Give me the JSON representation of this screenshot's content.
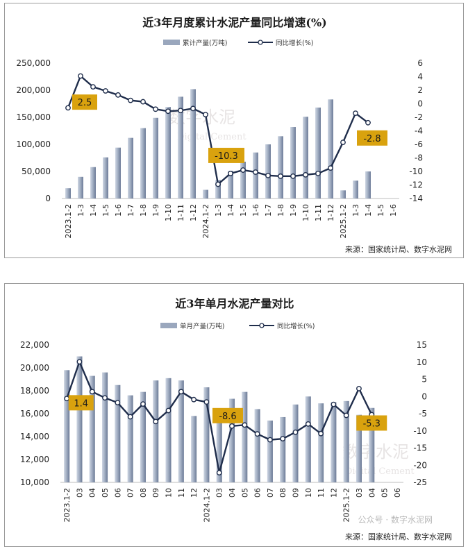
{
  "chart_data": [
    {
      "type": "bar+line",
      "title": "近3年月度累计水泥产量同比增速(%)",
      "legend": {
        "bar": "累计产量(万吨)",
        "line": "同比增长(%)"
      },
      "source": "来源：国家统计局、数字水泥网",
      "watermark": {
        "cn": "数字水泥",
        "en": "Digital Cement"
      },
      "categories": [
        "2023.1-2",
        "1-3",
        "1-4",
        "1-5",
        "1-6",
        "1-7",
        "1-8",
        "1-9",
        "1-10",
        "1-11",
        "1-12",
        "2024.1-2",
        "1-3",
        "1-4",
        "1-5",
        "1-6",
        "1-7",
        "1-8",
        "1-9",
        "1-10",
        "1-11",
        "1-12",
        "2025.1-2",
        "1-3",
        "1-4",
        "1-5",
        "1-6"
      ],
      "y_left": {
        "min": 0,
        "max": 250000,
        "step": 50000,
        "ticks": [
          "0",
          "50,000",
          "100,000",
          "150,000",
          "200,000",
          "250,000"
        ]
      },
      "y_right": {
        "min": -14,
        "max": 6,
        "step": 2,
        "ticks": [
          "-14",
          "-12",
          "-10",
          "-8",
          "-6",
          "-4",
          "-2",
          "0",
          "2",
          "4",
          "6"
        ]
      },
      "series": [
        {
          "name": "累计产量(万吨)",
          "kind": "bar",
          "values": [
            19000,
            40000,
            58000,
            76000,
            94000,
            112000,
            130000,
            149000,
            169000,
            188000,
            202000,
            16000,
            34000,
            51000,
            68000,
            85000,
            100000,
            115000,
            132000,
            151000,
            168000,
            183000,
            15000,
            33000,
            50000,
            null,
            null
          ]
        },
        {
          "name": "同比增长(%)",
          "kind": "line",
          "values": [
            -0.6,
            4.1,
            2.5,
            1.9,
            1.3,
            0.5,
            0.3,
            -0.8,
            -1.1,
            -1.0,
            -0.7,
            -1.6,
            -11.9,
            -10.3,
            -9.8,
            -10.1,
            -10.6,
            -10.7,
            -10.7,
            -10.5,
            -10.3,
            -9.5,
            -5.7,
            -1.4,
            -2.8,
            null,
            null
          ]
        }
      ],
      "data_labels": [
        {
          "index": 2,
          "text": "2.5"
        },
        {
          "index": 13,
          "text": "-10.3"
        },
        {
          "index": 24,
          "text": "-2.8"
        }
      ]
    },
    {
      "type": "bar+line",
      "title": "近3年单月水泥产量对比",
      "legend": {
        "bar": "单月产量(万吨)",
        "line": "同比增长(%)"
      },
      "source": "来源：国家统计局、数字水泥网",
      "watermark": {
        "cn": "数字水泥",
        "en": "Digital Cement"
      },
      "categories": [
        "2023.1-2",
        "03",
        "04",
        "05",
        "06",
        "07",
        "08",
        "09",
        "10",
        "11",
        "12",
        "2024.1-2",
        "03",
        "04",
        "05",
        "06",
        "07",
        "08",
        "09",
        "10",
        "11",
        "12",
        "2025.1-2",
        "03",
        "04",
        "05",
        "06"
      ],
      "y_left": {
        "min": 10000,
        "max": 22000,
        "step": 2000,
        "ticks": [
          "10,000",
          "12,000",
          "14,000",
          "16,000",
          "18,000",
          "20,000",
          "22,000"
        ]
      },
      "y_right": {
        "min": -25,
        "max": 15,
        "step": 5,
        "ticks": [
          "-25",
          "-20",
          "-15",
          "-10",
          "-5",
          "0",
          "5",
          "10",
          "15"
        ]
      },
      "series": [
        {
          "name": "单月产量(万吨)",
          "kind": "bar",
          "values": [
            19800,
            21000,
            19300,
            19600,
            18500,
            17600,
            17900,
            18900,
            19100,
            18900,
            15800,
            18300,
            15900,
            17300,
            17900,
            16400,
            15400,
            15700,
            16800,
            17500,
            16900,
            17000,
            17100,
            15900,
            16500,
            null,
            null
          ]
        },
        {
          "name": "同比增长(%)",
          "kind": "line",
          "values": [
            -0.6,
            10.1,
            1.4,
            -0.4,
            -1.8,
            -5.9,
            -2.2,
            -7.3,
            -4.1,
            1.4,
            -0.9,
            -1.6,
            -22.2,
            -8.6,
            -8.3,
            -10.9,
            -12.6,
            -12.3,
            -10.4,
            -8.0,
            -10.8,
            -2.3,
            -5.5,
            2.3,
            -5.3,
            null,
            null
          ]
        }
      ],
      "data_labels": [
        {
          "index": 2,
          "text": "1.4"
        },
        {
          "index": 13,
          "text": "-8.6"
        },
        {
          "index": 24,
          "text": "-5.3"
        }
      ]
    }
  ],
  "overlay": {
    "wechat_tag": "公众号 · 数字水泥网"
  }
}
